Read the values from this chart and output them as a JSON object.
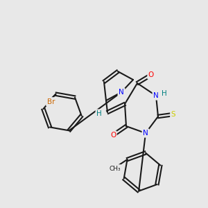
{
  "bg_color": "#e8e8e8",
  "bond_color": "#1a1a1a",
  "bond_width": 1.5,
  "atom_colors": {
    "N": "#0000ff",
    "O": "#ff0000",
    "S": "#cccc00",
    "Br": "#cc6600",
    "H": "#008080",
    "C": "#1a1a1a"
  }
}
